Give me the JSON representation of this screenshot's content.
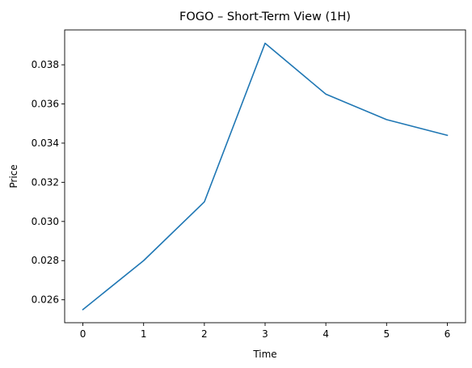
{
  "chart_data": {
    "type": "line",
    "title": "FOGO – Short-Term View (1H)",
    "xlabel": "Time",
    "ylabel": "Price",
    "x": [
      0,
      1,
      2,
      3,
      4,
      5,
      6
    ],
    "series": [
      {
        "values": [
          0.0255,
          0.028,
          0.031,
          0.0391,
          0.0365,
          0.0352,
          0.0344
        ],
        "color": "#1f77b4"
      }
    ],
    "xlim": [
      -0.3,
      6.3
    ],
    "ylim": [
      0.02483,
      0.03978
    ],
    "xticks": [
      0,
      1,
      2,
      3,
      4,
      5,
      6
    ],
    "xtick_labels": [
      "0",
      "1",
      "2",
      "3",
      "4",
      "5",
      "6"
    ],
    "yticks": [
      0.026,
      0.028,
      0.03,
      0.032,
      0.034,
      0.036,
      0.038
    ],
    "ytick_labels": [
      "0.026",
      "0.028",
      "0.030",
      "0.032",
      "0.034",
      "0.036",
      "0.038"
    ],
    "grid": false,
    "legend": "none"
  }
}
